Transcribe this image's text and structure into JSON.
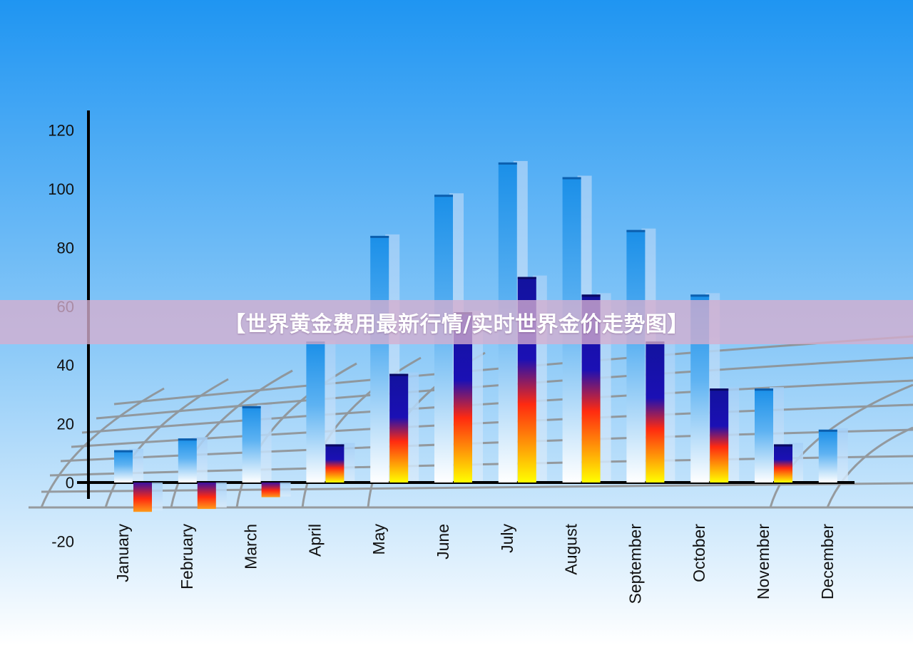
{
  "banner": {
    "title": "【世界黄金费用最新行情/实时世界金价走势图】"
  },
  "chart_data": {
    "type": "bar",
    "categories": [
      "January",
      "February",
      "March",
      "April",
      "May",
      "June",
      "July",
      "August",
      "September",
      "October",
      "November",
      "December"
    ],
    "series": [
      {
        "values": [
          11,
          15,
          26,
          48,
          84,
          98,
          109,
          104,
          86,
          64,
          32,
          18
        ]
      },
      {
        "values": [
          -10,
          -9,
          -5,
          13,
          37,
          58,
          70,
          64,
          48,
          32,
          13,
          null
        ]
      }
    ],
    "yticks": [
      -20,
      0,
      20,
      40,
      60,
      80,
      100,
      120
    ],
    "ylim": [
      -20,
      120
    ],
    "title": "",
    "xlabel": "",
    "ylabel": "",
    "grid": false,
    "colors": {
      "background_top": "#1f95f2",
      "background_bottom": "#ffffff",
      "series1_top": "#1a8fe8",
      "series1_bottom": "#ffffff",
      "series2_top": "#12129e",
      "series2_mid": "#ff2a10",
      "series2_bottom": "#ffff00",
      "shadow": "#a4cff7",
      "axis": "#000000",
      "floor_grid": "#8e8e8e"
    }
  }
}
